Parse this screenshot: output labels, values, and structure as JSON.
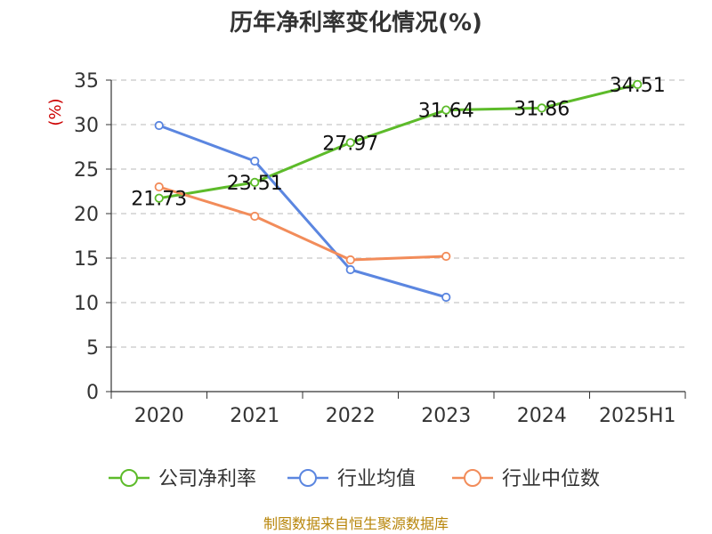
{
  "chart_data": {
    "type": "line",
    "title": "历年净利率变化情况(%)",
    "ylabel": "(%)",
    "xlabel": "",
    "categories": [
      "2020",
      "2021",
      "2022",
      "2023",
      "2024",
      "2025H1"
    ],
    "ylim": [
      0,
      35
    ],
    "yticks": [
      0,
      5,
      10,
      15,
      20,
      25,
      30,
      35
    ],
    "grid": true,
    "legend_position": "bottom",
    "series": [
      {
        "name": "公司净利率",
        "color": "#5dbb2a",
        "values": [
          21.73,
          23.51,
          27.97,
          31.64,
          31.86,
          34.51
        ],
        "labels": [
          "21.73",
          "23.51",
          "27.97",
          "31.64",
          "31.86",
          "34.51"
        ]
      },
      {
        "name": "行业均值",
        "color": "#5b86e0",
        "values": [
          29.9,
          25.9,
          13.7,
          10.6,
          null,
          null
        ]
      },
      {
        "name": "行业中位数",
        "color": "#f28c5a",
        "values": [
          23.0,
          19.7,
          14.8,
          15.2,
          null,
          null
        ]
      }
    ]
  },
  "source_note": "制图数据来自恒生聚源数据库"
}
